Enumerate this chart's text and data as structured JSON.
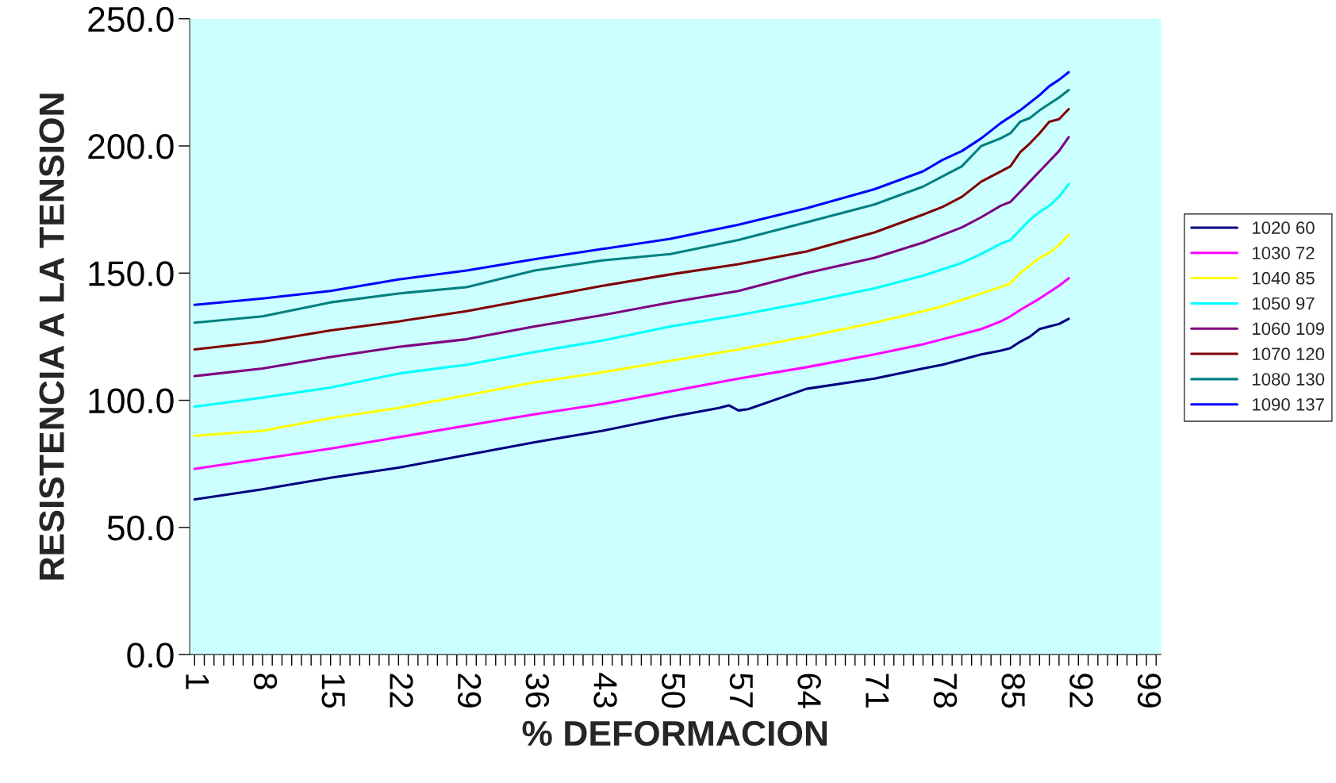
{
  "chart_data": {
    "type": "line",
    "xlabel": "% DEFORMACION",
    "ylabel": "RESISTENCIA A LA TENSION",
    "xlim": [
      0.5,
      100.5
    ],
    "ylim": [
      0,
      250
    ],
    "xticks": [
      {
        "value": 1,
        "label": "1"
      },
      {
        "value": 2,
        "label": null
      },
      {
        "value": 3,
        "label": null
      },
      {
        "value": 4,
        "label": null
      },
      {
        "value": 5,
        "label": null
      },
      {
        "value": 6,
        "label": null
      },
      {
        "value": 7,
        "label": null
      },
      {
        "value": 8,
        "label": "8"
      },
      {
        "value": 9,
        "label": null
      },
      {
        "value": 10,
        "label": null
      },
      {
        "value": 11,
        "label": null
      },
      {
        "value": 12,
        "label": null
      },
      {
        "value": 13,
        "label": null
      },
      {
        "value": 14,
        "label": null
      },
      {
        "value": 15,
        "label": "15"
      },
      {
        "value": 16,
        "label": null
      },
      {
        "value": 17,
        "label": null
      },
      {
        "value": 18,
        "label": null
      },
      {
        "value": 19,
        "label": null
      },
      {
        "value": 20,
        "label": null
      },
      {
        "value": 21,
        "label": null
      },
      {
        "value": 22,
        "label": "22"
      },
      {
        "value": 23,
        "label": null
      },
      {
        "value": 24,
        "label": null
      },
      {
        "value": 25,
        "label": null
      },
      {
        "value": 26,
        "label": null
      },
      {
        "value": 27,
        "label": null
      },
      {
        "value": 28,
        "label": null
      },
      {
        "value": 29,
        "label": "29"
      },
      {
        "value": 30,
        "label": null
      },
      {
        "value": 31,
        "label": null
      },
      {
        "value": 32,
        "label": null
      },
      {
        "value": 33,
        "label": null
      },
      {
        "value": 34,
        "label": null
      },
      {
        "value": 35,
        "label": null
      },
      {
        "value": 36,
        "label": "36"
      },
      {
        "value": 37,
        "label": null
      },
      {
        "value": 38,
        "label": null
      },
      {
        "value": 39,
        "label": null
      },
      {
        "value": 40,
        "label": null
      },
      {
        "value": 41,
        "label": null
      },
      {
        "value": 42,
        "label": null
      },
      {
        "value": 43,
        "label": "43"
      },
      {
        "value": 44,
        "label": null
      },
      {
        "value": 45,
        "label": null
      },
      {
        "value": 46,
        "label": null
      },
      {
        "value": 47,
        "label": null
      },
      {
        "value": 48,
        "label": null
      },
      {
        "value": 49,
        "label": null
      },
      {
        "value": 50,
        "label": "50"
      },
      {
        "value": 51,
        "label": null
      },
      {
        "value": 52,
        "label": null
      },
      {
        "value": 53,
        "label": null
      },
      {
        "value": 54,
        "label": null
      },
      {
        "value": 55,
        "label": null
      },
      {
        "value": 56,
        "label": null
      },
      {
        "value": 57,
        "label": "57"
      },
      {
        "value": 58,
        "label": null
      },
      {
        "value": 59,
        "label": null
      },
      {
        "value": 60,
        "label": null
      },
      {
        "value": 61,
        "label": null
      },
      {
        "value": 62,
        "label": null
      },
      {
        "value": 63,
        "label": null
      },
      {
        "value": 64,
        "label": "64"
      },
      {
        "value": 65,
        "label": null
      },
      {
        "value": 66,
        "label": null
      },
      {
        "value": 67,
        "label": null
      },
      {
        "value": 68,
        "label": null
      },
      {
        "value": 69,
        "label": null
      },
      {
        "value": 70,
        "label": null
      },
      {
        "value": 71,
        "label": "71"
      },
      {
        "value": 72,
        "label": null
      },
      {
        "value": 73,
        "label": null
      },
      {
        "value": 74,
        "label": null
      },
      {
        "value": 75,
        "label": null
      },
      {
        "value": 76,
        "label": null
      },
      {
        "value": 77,
        "label": null
      },
      {
        "value": 78,
        "label": "78"
      },
      {
        "value": 79,
        "label": null
      },
      {
        "value": 80,
        "label": null
      },
      {
        "value": 81,
        "label": null
      },
      {
        "value": 82,
        "label": null
      },
      {
        "value": 83,
        "label": null
      },
      {
        "value": 84,
        "label": null
      },
      {
        "value": 85,
        "label": "85"
      },
      {
        "value": 86,
        "label": null
      },
      {
        "value": 87,
        "label": null
      },
      {
        "value": 88,
        "label": null
      },
      {
        "value": 89,
        "label": null
      },
      {
        "value": 90,
        "label": null
      },
      {
        "value": 91,
        "label": null
      },
      {
        "value": 92,
        "label": "92"
      },
      {
        "value": 93,
        "label": null
      },
      {
        "value": 94,
        "label": null
      },
      {
        "value": 95,
        "label": null
      },
      {
        "value": 96,
        "label": null
      },
      {
        "value": 97,
        "label": null
      },
      {
        "value": 98,
        "label": null
      },
      {
        "value": 99,
        "label": "99"
      },
      {
        "value": 100,
        "label": null
      }
    ],
    "yticks": [
      {
        "value": 0,
        "label": "0.0"
      },
      {
        "value": 50,
        "label": "50.0"
      },
      {
        "value": 100,
        "label": "100.0"
      },
      {
        "value": 150,
        "label": "150.0"
      },
      {
        "value": 200,
        "label": "200.0"
      },
      {
        "value": 250,
        "label": "250.0"
      }
    ],
    "grid": false,
    "legend": "right",
    "marker": "none",
    "line_style": "solid",
    "series": [
      {
        "name": "1020 60",
        "color": "#000080",
        "x": [
          1,
          8,
          15,
          22,
          29,
          36,
          43,
          50,
          55,
          56,
          57,
          58,
          64,
          71,
          76,
          78,
          80,
          82,
          84,
          85,
          86,
          87,
          88,
          89,
          90,
          91
        ],
        "values": [
          61,
          65,
          69.5,
          73.5,
          78.5,
          83.5,
          88,
          93.5,
          97,
          98,
          96,
          96.5,
          104.5,
          108.5,
          112.5,
          114,
          116,
          118,
          119.5,
          120.5,
          123,
          125,
          128,
          129,
          130,
          132
        ]
      },
      {
        "name": "1030 72",
        "color": "#ff00ff",
        "x": [
          1,
          8,
          15,
          22,
          29,
          36,
          43,
          50,
          57,
          64,
          71,
          76,
          78,
          80,
          82,
          84,
          85,
          86,
          88,
          90,
          91
        ],
        "values": [
          73,
          77,
          81,
          85.5,
          90,
          94.5,
          98.5,
          103.5,
          108.5,
          113,
          118,
          122,
          124,
          126,
          128,
          131,
          133,
          135.5,
          140,
          145,
          148
        ]
      },
      {
        "name": "1040 85",
        "color": "#ffff00",
        "x": [
          1,
          8,
          15,
          22,
          29,
          36,
          43,
          50,
          57,
          64,
          71,
          76,
          78,
          80,
          82,
          84,
          85,
          86,
          87,
          88,
          89,
          90,
          91
        ],
        "values": [
          86,
          88,
          93,
          97,
          102,
          107,
          111,
          115.5,
          120,
          125,
          130.5,
          135,
          137,
          139.5,
          142,
          144.5,
          146,
          150,
          153,
          156,
          158,
          161,
          165
        ]
      },
      {
        "name": "1050 97",
        "color": "#00ffff",
        "x": [
          1,
          8,
          15,
          22,
          29,
          36,
          43,
          50,
          57,
          64,
          71,
          76,
          78,
          80,
          82,
          84,
          85,
          86,
          87,
          88,
          89,
          90,
          91
        ],
        "values": [
          97.5,
          101,
          105,
          110.5,
          114,
          119,
          123.5,
          129,
          133.5,
          138.5,
          144,
          149,
          151.5,
          154,
          157.5,
          161.5,
          163,
          167,
          171,
          174,
          176.5,
          180,
          185
        ]
      },
      {
        "name": "1060 109",
        "color": "#800080",
        "x": [
          1,
          8,
          15,
          22,
          29,
          36,
          43,
          50,
          57,
          64,
          71,
          76,
          78,
          80,
          82,
          84,
          85,
          86,
          87,
          88,
          89,
          90,
          91
        ],
        "values": [
          109.5,
          112.5,
          117,
          121,
          124,
          129,
          133.5,
          138.5,
          143,
          150,
          156,
          162,
          165,
          168,
          172,
          176.5,
          178,
          182,
          186,
          190,
          194,
          198,
          203.5
        ]
      },
      {
        "name": "1070 120",
        "color": "#800000",
        "x": [
          1,
          8,
          15,
          22,
          29,
          36,
          43,
          50,
          57,
          64,
          71,
          76,
          78,
          80,
          82,
          84,
          85,
          86,
          87,
          88,
          89,
          90,
          91
        ],
        "values": [
          120,
          123,
          127.5,
          131,
          135,
          140,
          145,
          149.5,
          153.5,
          158.5,
          166,
          173,
          176,
          180,
          186,
          190,
          192,
          197.5,
          201,
          205,
          209.5,
          210.5,
          214.5
        ]
      },
      {
        "name": "1080 130",
        "color": "#008080",
        "x": [
          1,
          8,
          15,
          22,
          29,
          36,
          43,
          50,
          57,
          64,
          71,
          76,
          78,
          80,
          82,
          84,
          85,
          86,
          87,
          88,
          89,
          90,
          91
        ],
        "values": [
          130.5,
          133,
          138.5,
          142,
          144.5,
          151,
          155,
          157.5,
          163,
          170,
          177,
          184,
          188,
          192,
          200,
          203,
          205,
          209.5,
          211,
          214,
          216.5,
          219,
          222
        ]
      },
      {
        "name": "1090 137",
        "color": "#0000ff",
        "x": [
          1,
          8,
          15,
          22,
          29,
          36,
          43,
          50,
          57,
          64,
          71,
          76,
          78,
          80,
          82,
          84,
          85,
          86,
          87,
          88,
          89,
          90,
          91
        ],
        "values": [
          137.5,
          140,
          143,
          147.5,
          151,
          155.5,
          159.5,
          163.5,
          169,
          175.5,
          183,
          190,
          194.5,
          198,
          203,
          209,
          211.5,
          214,
          217,
          220,
          223.5,
          226,
          229
        ]
      }
    ]
  }
}
